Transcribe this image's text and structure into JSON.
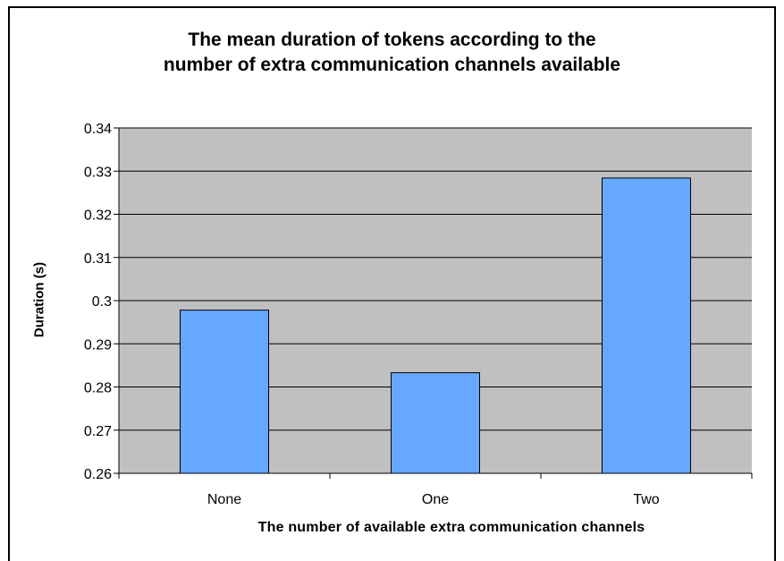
{
  "chart_data": {
    "type": "bar",
    "title_lines": [
      "The mean duration of tokens according to the",
      "number of extra communication channels available"
    ],
    "xlabel": "The number of available extra communication channels",
    "ylabel": "Duration (s)",
    "categories": [
      "None",
      "One",
      "Two"
    ],
    "values": [
      0.2978,
      0.2833,
      0.3284
    ],
    "ylim": [
      0.26,
      0.34
    ],
    "yticks": [
      "0.26",
      "0.27",
      "0.28",
      "0.29",
      "0.3",
      "0.31",
      "0.32",
      "0.33",
      "0.34"
    ],
    "grid": true,
    "legend": "none"
  },
  "colors": {
    "bar_fill": "#66a8ff",
    "plot_background": "#c0c0c0",
    "gridline": "#000000"
  }
}
